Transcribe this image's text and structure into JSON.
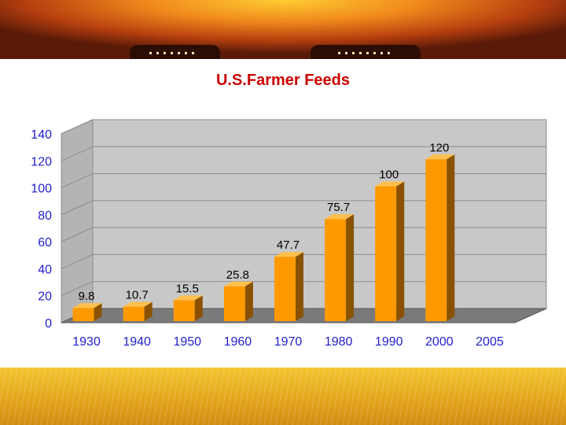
{
  "chart_data": {
    "type": "bar",
    "title": "U.S.Farmer Feeds",
    "categories": [
      "1930",
      "1940",
      "1950",
      "1960",
      "1970",
      "1980",
      "1990",
      "2000",
      "2005"
    ],
    "values": [
      9.8,
      10.7,
      15.5,
      25.8,
      47.7,
      75.7,
      100,
      120,
      null
    ],
    "value_labels": [
      "9.8",
      "10.7",
      "15.5",
      "25.8",
      "47.7",
      "75.7",
      "100",
      "120",
      ""
    ],
    "ylim": [
      0,
      140
    ],
    "yticks": [
      "0",
      "20",
      "40",
      "60",
      "80",
      "100",
      "120",
      "140"
    ],
    "xlabel": "",
    "ylabel": "",
    "grid": true,
    "style": "3d",
    "colors": {
      "bar_front": "#ff9900",
      "bar_side": "#8a5200",
      "bar_top": "#ffc04d",
      "axis_text": "#1f1fcc",
      "title": "#cc0000",
      "wall": "#c8c8c8"
    }
  }
}
